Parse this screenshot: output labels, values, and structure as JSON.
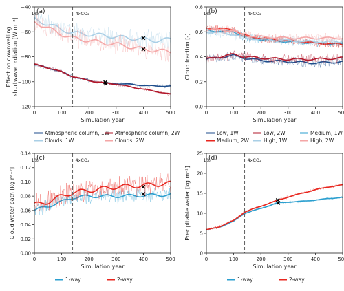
{
  "chart_data": [
    {
      "type": "line",
      "panel": "(a)",
      "ylabel": "Effect on downwelling shortwave radiation [W m⁻²]",
      "xlabel": "Simulation year",
      "xlim": [
        0,
        500
      ],
      "ylim": [
        -120,
        -40
      ],
      "xticks": [
        "0",
        "100",
        "200",
        "300",
        "400",
        "500"
      ],
      "yticks": [
        "−120",
        "−100",
        "−80",
        "−60",
        "−40"
      ],
      "ytick_values": [
        -120,
        -100,
        -80,
        -60,
        -40
      ],
      "divider_x": 140,
      "annotations": [
        "1%",
        "4xCO₂"
      ],
      "legend_columns": 2,
      "series": [
        {
          "name": "Atmospheric column, 1W",
          "color": "#1f4e8c",
          "noise": 1.2,
          "x": [
            0,
            50,
            100,
            140,
            180,
            220,
            260,
            300,
            350,
            400,
            450,
            500
          ],
          "values": [
            -86,
            -89,
            -92,
            -96,
            -98,
            -100,
            -101,
            -101.5,
            -102,
            -103,
            -103.5,
            -103.5
          ]
        },
        {
          "name": "Atmospheric column, 2W",
          "color": "#b2182b",
          "noise": 1.2,
          "x": [
            0,
            50,
            100,
            140,
            180,
            220,
            260,
            300,
            350,
            400,
            450,
            500
          ],
          "values": [
            -86,
            -89,
            -92,
            -96,
            -98,
            -100,
            -101,
            -102,
            -104,
            -106,
            -108,
            -110
          ]
        },
        {
          "name": "Clouds, 1W",
          "color": "#a9cfe6",
          "noise": 6,
          "x": [
            0,
            50,
            100,
            140,
            200,
            260,
            300,
            350,
            400,
            450,
            500
          ],
          "values": [
            -50,
            -54,
            -58,
            -61,
            -62,
            -63,
            -64,
            -65,
            -66,
            -67,
            -66
          ]
        },
        {
          "name": "Clouds, 2W",
          "color": "#f4a6a6",
          "noise": 6,
          "x": [
            0,
            50,
            100,
            140,
            200,
            260,
            300,
            350,
            400,
            450,
            500
          ],
          "values": [
            -52,
            -57,
            -62,
            -65,
            -67,
            -69,
            -70,
            -72,
            -74,
            -75,
            -76
          ]
        }
      ],
      "markers": [
        [
          260,
          -100.5
        ],
        [
          262,
          -101.5
        ],
        [
          400,
          -65
        ],
        [
          400,
          -74
        ]
      ]
    },
    {
      "type": "line",
      "panel": "(b)",
      "ylabel": "Cloud fraction [-]",
      "xlabel": "Simulation year",
      "xlim": [
        0,
        500
      ],
      "ylim": [
        0.0,
        0.8
      ],
      "xticks": [
        "0",
        "100",
        "200",
        "300",
        "400",
        "500"
      ],
      "yticks": [
        "0.0",
        "0.2",
        "0.4",
        "0.6",
        "0.8"
      ],
      "ytick_values": [
        0.0,
        0.2,
        0.4,
        0.6,
        0.8
      ],
      "divider_x": 140,
      "annotations": [
        "1%",
        "4xCO₂"
      ],
      "legend_columns": 3,
      "series": [
        {
          "name": "Low, 1W",
          "color": "#1f4e8c",
          "noise": 0.03,
          "x": [
            0,
            100,
            140,
            200,
            300,
            400,
            500
          ],
          "values": [
            0.38,
            0.41,
            0.39,
            0.37,
            0.36,
            0.35,
            0.36
          ]
        },
        {
          "name": "Low, 2W",
          "color": "#b2182b",
          "noise": 0.03,
          "x": [
            0,
            100,
            140,
            200,
            300,
            400,
            500
          ],
          "values": [
            0.38,
            0.42,
            0.4,
            0.39,
            0.38,
            0.38,
            0.39
          ]
        },
        {
          "name": "Medium, 1W",
          "color": "#2b9fcf",
          "noise": 0.025,
          "x": [
            0,
            100,
            140,
            200,
            300,
            400,
            500
          ],
          "values": [
            0.61,
            0.6,
            0.56,
            0.54,
            0.52,
            0.51,
            0.5
          ]
        },
        {
          "name": "Medium, 2W",
          "color": "#e8271f",
          "noise": 0.025,
          "x": [
            0,
            100,
            140,
            200,
            300,
            400,
            500
          ],
          "values": [
            0.63,
            0.62,
            0.57,
            0.55,
            0.53,
            0.51,
            0.5
          ]
        },
        {
          "name": "High, 1W",
          "color": "#a9cfe6",
          "noise": 0.03,
          "x": [
            0,
            100,
            140,
            200,
            300,
            400,
            500
          ],
          "values": [
            0.6,
            0.58,
            0.55,
            0.54,
            0.53,
            0.52,
            0.52
          ]
        },
        {
          "name": "High, 2W",
          "color": "#f4a6a6",
          "noise": 0.03,
          "x": [
            0,
            100,
            140,
            200,
            300,
            400,
            500
          ],
          "values": [
            0.62,
            0.61,
            0.57,
            0.56,
            0.55,
            0.55,
            0.55
          ]
        }
      ]
    },
    {
      "type": "line",
      "panel": "(c)",
      "ylabel": "Cloud water path [kg m⁻²]",
      "xlabel": "Simulation year",
      "xlim": [
        0,
        500
      ],
      "ylim": [
        0.0,
        0.14
      ],
      "xticks": [
        "0",
        "100",
        "200",
        "300",
        "400",
        "500"
      ],
      "yticks": [
        "0.00",
        "0.02",
        "0.04",
        "0.06",
        "0.08",
        "0.10",
        "0.12",
        "0.14"
      ],
      "ytick_values": [
        0.0,
        0.02,
        0.04,
        0.06,
        0.08,
        0.1,
        0.12,
        0.14
      ],
      "divider_x": 140,
      "annotations": [
        "1%",
        "4xCO₂"
      ],
      "legend_columns": 2,
      "series": [
        {
          "name": "1-way",
          "color": "#2b9fcf",
          "noise": 0.008,
          "x": [
            0,
            50,
            100,
            140,
            200,
            300,
            400,
            500
          ],
          "values": [
            0.06,
            0.066,
            0.072,
            0.078,
            0.08,
            0.08,
            0.081,
            0.082
          ]
        },
        {
          "name": "2-way",
          "color": "#e8271f",
          "noise": 0.012,
          "x": [
            0,
            50,
            100,
            140,
            200,
            300,
            400,
            500
          ],
          "values": [
            0.068,
            0.072,
            0.08,
            0.085,
            0.088,
            0.093,
            0.095,
            0.098
          ]
        }
      ],
      "markers": [
        [
          400,
          0.093
        ],
        [
          400,
          0.083
        ]
      ]
    },
    {
      "type": "line",
      "panel": "(d)",
      "ylabel": "Precipitable water [kg m⁻²]",
      "xlabel": "Simulation year",
      "xlim": [
        0,
        500
      ],
      "ylim": [
        0,
        25
      ],
      "xticks": [
        "0",
        "100",
        "200",
        "300",
        "400",
        "500"
      ],
      "yticks": [
        "0",
        "5",
        "10",
        "15",
        "20",
        "25"
      ],
      "ytick_values": [
        0,
        5,
        10,
        15,
        20,
        25
      ],
      "divider_x": 140,
      "annotations": [
        "1%",
        "4xCO₂"
      ],
      "legend_columns": 2,
      "series": [
        {
          "name": "1-way",
          "color": "#2b9fcf",
          "noise": 0.25,
          "x": [
            0,
            50,
            100,
            140,
            200,
            260,
            300,
            350,
            400,
            450,
            500
          ],
          "values": [
            5.8,
            6.6,
            8.0,
            10.0,
            11.2,
            12.6,
            12.8,
            13.0,
            13.3,
            13.7,
            14.0
          ]
        },
        {
          "name": "2-way",
          "color": "#e8271f",
          "noise": 0.3,
          "x": [
            0,
            50,
            100,
            140,
            200,
            260,
            300,
            350,
            400,
            450,
            500
          ],
          "values": [
            5.8,
            6.7,
            8.2,
            10.3,
            11.8,
            13.2,
            14.1,
            15.0,
            15.9,
            16.6,
            17.1
          ]
        }
      ],
      "markers": [
        [
          262,
          13.3
        ],
        [
          264,
          12.6
        ]
      ]
    }
  ]
}
